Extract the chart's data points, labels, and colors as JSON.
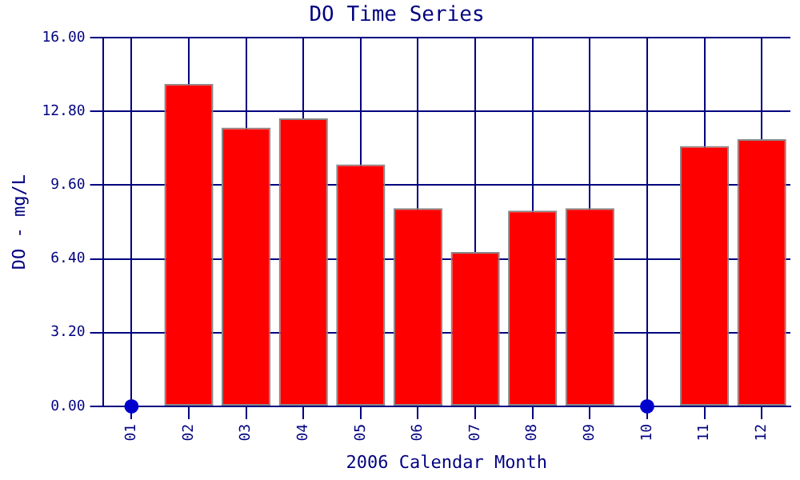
{
  "chart_data": {
    "type": "bar",
    "title": "DO Time Series",
    "xlabel": "2006 Calendar Month",
    "ylabel": "DO - mg/L",
    "categories": [
      "01",
      "02",
      "03",
      "04",
      "05",
      "06",
      "07",
      "08",
      "09",
      "10",
      "11",
      "12"
    ],
    "series": [
      {
        "color": "#ff0000",
        "values": [
          null,
          14.0,
          12.1,
          12.5,
          10.5,
          8.6,
          6.7,
          8.5,
          8.6,
          null,
          11.3,
          11.6
        ]
      },
      {
        "type": "scatter",
        "color": "#0000cc",
        "x": [
          "01",
          "10"
        ],
        "values": [
          0,
          0
        ],
        "marker": "circle"
      }
    ],
    "ylim": [
      0,
      16
    ],
    "yticks": [
      {
        "value": 0,
        "label": "0.00"
      },
      {
        "value": 3.2,
        "label": "3.20"
      },
      {
        "value": 6.4,
        "label": "6.40"
      },
      {
        "value": 9.6,
        "label": "9.60"
      },
      {
        "value": 12.8,
        "label": "12.80"
      },
      {
        "value": 16,
        "label": "16.00"
      }
    ],
    "grid": true,
    "legend": false
  }
}
